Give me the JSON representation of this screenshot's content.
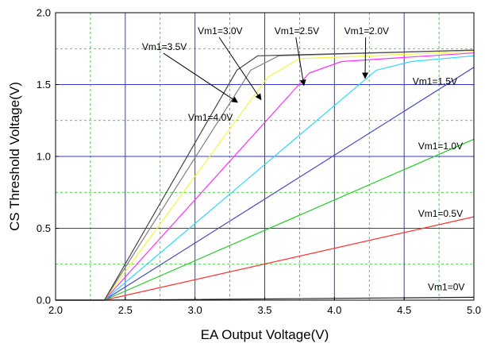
{
  "chart_data": {
    "type": "line",
    "title": "",
    "xlabel": "EA Output Voltage(V)",
    "ylabel": "CS Threshold Voltage(V)",
    "xlim": [
      2.0,
      5.0
    ],
    "ylim": [
      0.0,
      2.0
    ],
    "x_ticks": [
      "2.0",
      "2.5",
      "3.0",
      "3.5",
      "4.0",
      "4.5",
      "5.0"
    ],
    "y_ticks": [
      "0.0",
      "0.5",
      "1.0",
      "1.5",
      "2.0"
    ],
    "grid": {
      "major": true,
      "minor": true,
      "major_color": "#3838c8",
      "minor_color": "#22bb22",
      "minor_style": "dashed"
    },
    "series": [
      {
        "name": "Vm1=0V",
        "color": "#222222",
        "x": [
          2.0,
          2.35,
          5.0
        ],
        "y": [
          0.0,
          0.0,
          0.02
        ]
      },
      {
        "name": "Vm1=0.5V",
        "color": "#ff3030",
        "x": [
          2.0,
          2.35,
          5.0
        ],
        "y": [
          0.0,
          0.0,
          0.58
        ]
      },
      {
        "name": "Vm1=1.0V",
        "color": "#22cc22",
        "x": [
          2.0,
          2.35,
          5.0
        ],
        "y": [
          0.0,
          0.0,
          1.12
        ]
      },
      {
        "name": "Vm1=1.5V",
        "color": "#4646c8",
        "x": [
          2.0,
          2.35,
          5.0
        ],
        "y": [
          0.0,
          0.0,
          1.62
        ]
      },
      {
        "name": "Vm1=2.0V",
        "color": "#30d8ff",
        "x": [
          2.0,
          2.35,
          4.3,
          4.55,
          5.0
        ],
        "y": [
          0.0,
          0.0,
          1.6,
          1.66,
          1.7
        ]
      },
      {
        "name": "Vm1=2.5V",
        "color": "#ff30ff",
        "x": [
          2.0,
          2.35,
          3.82,
          4.05,
          5.0
        ],
        "y": [
          0.0,
          0.0,
          1.58,
          1.66,
          1.72
        ]
      },
      {
        "name": "Vm1=3.0V",
        "color": "#f5f540",
        "x": [
          2.0,
          2.35,
          3.52,
          3.75,
          5.0
        ],
        "y": [
          0.0,
          0.0,
          1.55,
          1.68,
          1.73
        ]
      },
      {
        "name": "Vm1=3.5V",
        "color": "#808080",
        "x": [
          2.0,
          2.35,
          3.4,
          3.6,
          5.0
        ],
        "y": [
          0.0,
          0.0,
          1.6,
          1.7,
          1.74
        ]
      },
      {
        "name": "Vm1=4.0V",
        "color": "#444444",
        "x": [
          2.0,
          2.35,
          3.3,
          3.45,
          5.0
        ],
        "y": [
          0.0,
          0.0,
          1.6,
          1.7,
          1.74
        ]
      }
    ],
    "annotations": [
      {
        "text": "Vm1=4.0V",
        "x": 2.95,
        "y": 1.25,
        "arrow": false
      },
      {
        "text": "Vm1=3.5V",
        "x": 2.62,
        "y": 1.74,
        "arrow": true,
        "target": [
          3.3,
          1.38
        ]
      },
      {
        "text": "Vm1=3.0V",
        "x": 3.02,
        "y": 1.85,
        "arrow": true,
        "target": [
          3.47,
          1.4
        ]
      },
      {
        "text": "Vm1=2.5V",
        "x": 3.57,
        "y": 1.85,
        "arrow": true,
        "target": [
          3.78,
          1.5
        ]
      },
      {
        "text": "Vm1=2.0V",
        "x": 4.07,
        "y": 1.85,
        "arrow": true,
        "target": [
          4.22,
          1.55
        ]
      },
      {
        "text": "Vm1=1.5V",
        "x": 4.56,
        "y": 1.5,
        "arrow": false
      },
      {
        "text": "Vm1=1.0V",
        "x": 4.6,
        "y": 1.05,
        "arrow": false
      },
      {
        "text": "Vm1=0.5V",
        "x": 4.6,
        "y": 0.58,
        "arrow": false
      },
      {
        "text": "Vm1=0V",
        "x": 4.67,
        "y": 0.07,
        "arrow": false
      }
    ]
  }
}
